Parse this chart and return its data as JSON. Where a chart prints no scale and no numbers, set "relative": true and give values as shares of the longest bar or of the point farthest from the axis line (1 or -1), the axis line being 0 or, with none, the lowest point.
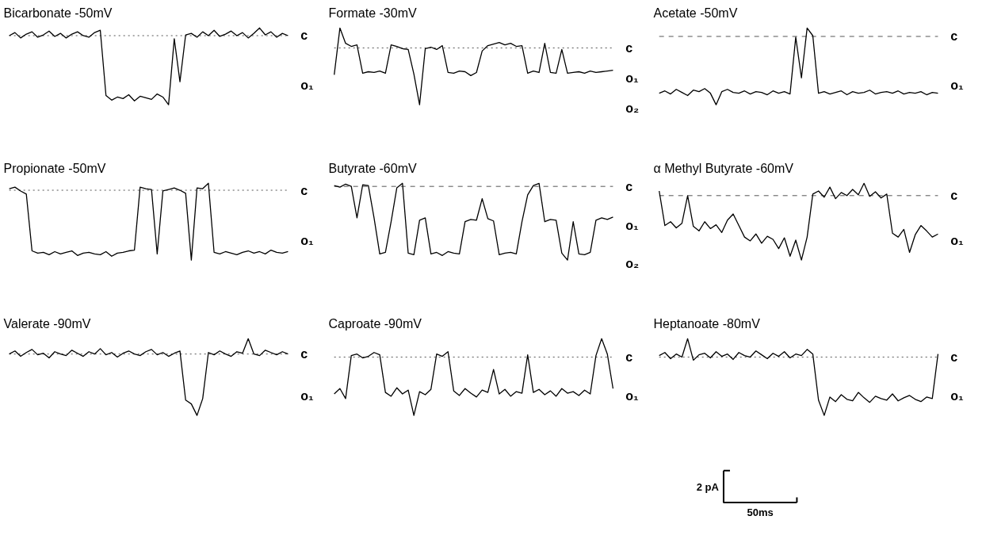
{
  "chart_data": [
    {
      "type": "line",
      "relative": true,
      "title": "Bicarbonate -50mV",
      "color": "#000000",
      "categories": [
        null,
        null,
        null,
        null,
        null,
        null,
        null,
        null,
        null,
        null,
        null,
        null,
        null,
        null,
        null,
        null,
        null,
        null,
        null,
        null,
        null,
        null,
        null,
        null,
        null,
        null,
        null,
        null,
        null,
        null,
        null,
        null,
        null,
        null,
        null,
        null,
        null,
        null,
        null,
        null,
        null,
        null,
        null,
        null,
        null,
        null,
        null,
        null,
        null,
        null
      ],
      "values": [
        0.9,
        0.94,
        0.87,
        0.92,
        0.95,
        0.88,
        0.91,
        0.96,
        0.89,
        0.93,
        0.87,
        0.92,
        0.95,
        0.9,
        0.88,
        0.94,
        0.97,
        0.12,
        0.06,
        0.1,
        0.08,
        0.13,
        0.05,
        0.11,
        0.09,
        0.07,
        0.14,
        0.1,
        0.0,
        0.86,
        0.3,
        0.91,
        0.93,
        0.88,
        0.95,
        0.9,
        0.97,
        0.89,
        0.92,
        0.96,
        0.9,
        0.94,
        0.87,
        0.93,
        1.0,
        0.91,
        0.95,
        0.88,
        0.93,
        0.9
      ],
      "ref_lines": [
        {
          "axis": "y",
          "value": 0.9,
          "label": "c",
          "line_style": "dotted",
          "color": "#555555"
        }
      ],
      "annotations": [
        "o₁"
      ]
    },
    {
      "type": "line",
      "relative": true,
      "title": "Formate -30mV",
      "color": "#000000",
      "categories": [
        null,
        null,
        null,
        null,
        null,
        null,
        null,
        null,
        null,
        null,
        null,
        null,
        null,
        null,
        null,
        null,
        null,
        null,
        null,
        null,
        null,
        null,
        null,
        null,
        null,
        null,
        null,
        null,
        null,
        null,
        null,
        null,
        null,
        null,
        null,
        null,
        null,
        null,
        null,
        null,
        null,
        null,
        null,
        null,
        null,
        null,
        null,
        null,
        null,
        null
      ],
      "values": [
        0.39,
        1.0,
        0.8,
        0.76,
        0.78,
        0.41,
        0.43,
        0.42,
        0.44,
        0.41,
        0.78,
        0.76,
        0.73,
        0.72,
        0.4,
        0.0,
        0.73,
        0.75,
        0.72,
        0.77,
        0.42,
        0.41,
        0.44,
        0.43,
        0.38,
        0.42,
        0.7,
        0.77,
        0.79,
        0.81,
        0.78,
        0.8,
        0.76,
        0.77,
        0.41,
        0.44,
        0.42,
        0.8,
        0.42,
        0.41,
        0.72,
        0.41,
        0.42,
        0.43,
        0.41,
        0.44,
        0.42,
        0.43,
        0.44,
        0.45
      ],
      "ref_lines": [
        {
          "axis": "y",
          "value": 0.74,
          "label": "c",
          "line_style": "dotted",
          "color": "#555555"
        }
      ],
      "annotations": [
        "o₁",
        "o₂"
      ]
    },
    {
      "type": "line",
      "relative": true,
      "title": "Acetate -50mV",
      "color": "#000000",
      "categories": [
        null,
        null,
        null,
        null,
        null,
        null,
        null,
        null,
        null,
        null,
        null,
        null,
        null,
        null,
        null,
        null,
        null,
        null,
        null,
        null,
        null,
        null,
        null,
        null,
        null,
        null,
        null,
        null,
        null,
        null,
        null,
        null,
        null,
        null,
        null,
        null,
        null,
        null,
        null,
        null,
        null,
        null,
        null,
        null,
        null,
        null,
        null,
        null,
        null,
        null
      ],
      "values": [
        0.15,
        0.18,
        0.14,
        0.2,
        0.16,
        0.12,
        0.19,
        0.17,
        0.21,
        0.15,
        0.0,
        0.17,
        0.2,
        0.16,
        0.15,
        0.18,
        0.14,
        0.17,
        0.16,
        0.13,
        0.18,
        0.15,
        0.17,
        0.14,
        0.88,
        0.35,
        1.0,
        0.9,
        0.15,
        0.17,
        0.14,
        0.16,
        0.18,
        0.13,
        0.17,
        0.15,
        0.16,
        0.19,
        0.14,
        0.16,
        0.17,
        0.15,
        0.18,
        0.14,
        0.16,
        0.15,
        0.17,
        0.13,
        0.16,
        0.15
      ],
      "ref_lines": [
        {
          "axis": "y",
          "value": 0.89,
          "label": "c",
          "line_style": "dashed",
          "color": "#555555"
        }
      ],
      "annotations": [
        "o₁"
      ]
    },
    {
      "type": "line",
      "relative": true,
      "title": "Propionate -50mV",
      "color": "#000000",
      "categories": [
        null,
        null,
        null,
        null,
        null,
        null,
        null,
        null,
        null,
        null,
        null,
        null,
        null,
        null,
        null,
        null,
        null,
        null,
        null,
        null,
        null,
        null,
        null,
        null,
        null,
        null,
        null,
        null,
        null,
        null,
        null,
        null,
        null,
        null,
        null,
        null,
        null,
        null,
        null,
        null,
        null,
        null,
        null,
        null,
        null,
        null,
        null,
        null,
        null,
        null
      ],
      "values": [
        0.93,
        0.95,
        0.9,
        0.86,
        0.12,
        0.09,
        0.1,
        0.07,
        0.11,
        0.08,
        0.1,
        0.12,
        0.06,
        0.09,
        0.1,
        0.08,
        0.07,
        0.11,
        0.05,
        0.09,
        0.1,
        0.12,
        0.13,
        0.95,
        0.93,
        0.92,
        0.08,
        0.9,
        0.92,
        0.94,
        0.91,
        0.87,
        0.0,
        0.94,
        0.93,
        1.0,
        0.1,
        0.08,
        0.11,
        0.09,
        0.07,
        0.1,
        0.12,
        0.09,
        0.11,
        0.08,
        0.13,
        0.1,
        0.09,
        0.11
      ],
      "ref_lines": [
        {
          "axis": "y",
          "value": 0.91,
          "label": "c",
          "line_style": "dotted",
          "color": "#555555"
        }
      ],
      "annotations": [
        "o₁"
      ]
    },
    {
      "type": "line",
      "relative": true,
      "title": "Butyrate -60mV",
      "color": "#000000",
      "categories": [
        null,
        null,
        null,
        null,
        null,
        null,
        null,
        null,
        null,
        null,
        null,
        null,
        null,
        null,
        null,
        null,
        null,
        null,
        null,
        null,
        null,
        null,
        null,
        null,
        null,
        null,
        null,
        null,
        null,
        null,
        null,
        null,
        null,
        null,
        null,
        null,
        null,
        null,
        null,
        null,
        null,
        null,
        null,
        null,
        null,
        null,
        null,
        null,
        null,
        null
      ],
      "values": [
        0.97,
        0.95,
        0.99,
        0.96,
        0.55,
        0.98,
        0.97,
        0.55,
        0.08,
        0.1,
        0.5,
        0.94,
        1.0,
        0.09,
        0.07,
        0.52,
        0.55,
        0.08,
        0.1,
        0.06,
        0.11,
        0.09,
        0.08,
        0.5,
        0.53,
        0.52,
        0.8,
        0.54,
        0.51,
        0.07,
        0.09,
        0.1,
        0.08,
        0.5,
        0.85,
        0.97,
        1.0,
        0.5,
        0.53,
        0.52,
        0.09,
        0.0,
        0.5,
        0.08,
        0.07,
        0.1,
        0.52,
        0.55,
        0.53,
        0.56
      ],
      "ref_lines": [
        {
          "axis": "y",
          "value": 0.96,
          "label": "c",
          "line_style": "dashed",
          "color": "#555555"
        }
      ],
      "annotations": [
        "o₁",
        "o₂"
      ]
    },
    {
      "type": "line",
      "relative": true,
      "title": "α Methyl Butyrate -60mV",
      "color": "#000000",
      "categories": [
        null,
        null,
        null,
        null,
        null,
        null,
        null,
        null,
        null,
        null,
        null,
        null,
        null,
        null,
        null,
        null,
        null,
        null,
        null,
        null,
        null,
        null,
        null,
        null,
        null,
        null,
        null,
        null,
        null,
        null,
        null,
        null,
        null,
        null,
        null,
        null,
        null,
        null,
        null,
        null,
        null,
        null,
        null,
        null,
        null,
        null,
        null,
        null,
        null,
        null
      ],
      "values": [
        0.9,
        0.45,
        0.5,
        0.42,
        0.48,
        0.84,
        0.44,
        0.38,
        0.5,
        0.41,
        0.46,
        0.36,
        0.52,
        0.6,
        0.45,
        0.3,
        0.25,
        0.34,
        0.22,
        0.31,
        0.27,
        0.15,
        0.29,
        0.05,
        0.26,
        0.0,
        0.3,
        0.86,
        0.9,
        0.82,
        0.95,
        0.8,
        0.88,
        0.84,
        0.92,
        0.85,
        1.0,
        0.83,
        0.89,
        0.81,
        0.86,
        0.35,
        0.3,
        0.4,
        0.1,
        0.33,
        0.45,
        0.38,
        0.3,
        0.34
      ],
      "ref_lines": [
        {
          "axis": "y",
          "value": 0.84,
          "label": "c",
          "line_style": "dashed",
          "color": "#555555"
        }
      ],
      "annotations": [
        "o₁"
      ]
    },
    {
      "type": "line",
      "relative": true,
      "title": "Valerate -90mV",
      "color": "#000000",
      "categories": [
        null,
        null,
        null,
        null,
        null,
        null,
        null,
        null,
        null,
        null,
        null,
        null,
        null,
        null,
        null,
        null,
        null,
        null,
        null,
        null,
        null,
        null,
        null,
        null,
        null,
        null,
        null,
        null,
        null,
        null,
        null,
        null,
        null,
        null,
        null,
        null,
        null,
        null,
        null,
        null,
        null,
        null,
        null,
        null,
        null,
        null,
        null,
        null,
        null,
        null
      ],
      "values": [
        0.8,
        0.84,
        0.77,
        0.82,
        0.86,
        0.79,
        0.81,
        0.75,
        0.83,
        0.8,
        0.78,
        0.85,
        0.81,
        0.77,
        0.83,
        0.8,
        0.87,
        0.79,
        0.82,
        0.76,
        0.81,
        0.84,
        0.8,
        0.78,
        0.83,
        0.86,
        0.79,
        0.82,
        0.77,
        0.81,
        0.84,
        0.2,
        0.15,
        0.0,
        0.22,
        0.82,
        0.79,
        0.84,
        0.8,
        0.77,
        0.83,
        0.81,
        1.0,
        0.8,
        0.78,
        0.85,
        0.82,
        0.79,
        0.83,
        0.8
      ],
      "ref_lines": [
        {
          "axis": "y",
          "value": 0.8,
          "label": "c",
          "line_style": "dotted",
          "color": "#555555"
        }
      ],
      "annotations": [
        "o₁"
      ]
    },
    {
      "type": "line",
      "relative": true,
      "title": "Caproate -90mV",
      "color": "#000000",
      "categories": [
        null,
        null,
        null,
        null,
        null,
        null,
        null,
        null,
        null,
        null,
        null,
        null,
        null,
        null,
        null,
        null,
        null,
        null,
        null,
        null,
        null,
        null,
        null,
        null,
        null,
        null,
        null,
        null,
        null,
        null,
        null,
        null,
        null,
        null,
        null,
        null,
        null,
        null,
        null,
        null,
        null,
        null,
        null,
        null,
        null,
        null,
        null,
        null,
        null,
        null
      ],
      "values": [
        0.28,
        0.35,
        0.22,
        0.78,
        0.8,
        0.75,
        0.77,
        0.82,
        0.79,
        0.3,
        0.25,
        0.36,
        0.28,
        0.33,
        0.0,
        0.31,
        0.27,
        0.34,
        0.8,
        0.77,
        0.83,
        0.32,
        0.26,
        0.35,
        0.29,
        0.24,
        0.33,
        0.3,
        0.6,
        0.28,
        0.34,
        0.25,
        0.31,
        0.29,
        0.79,
        0.3,
        0.34,
        0.27,
        0.32,
        0.25,
        0.35,
        0.29,
        0.31,
        0.26,
        0.33,
        0.28,
        0.78,
        1.0,
        0.8,
        0.35
      ],
      "ref_lines": [
        {
          "axis": "y",
          "value": 0.76,
          "label": "c",
          "line_style": "dotted",
          "color": "#555555"
        }
      ],
      "annotations": [
        "o₁"
      ]
    },
    {
      "type": "line",
      "relative": true,
      "title": "Heptanoate -80mV",
      "color": "#000000",
      "categories": [
        null,
        null,
        null,
        null,
        null,
        null,
        null,
        null,
        null,
        null,
        null,
        null,
        null,
        null,
        null,
        null,
        null,
        null,
        null,
        null,
        null,
        null,
        null,
        null,
        null,
        null,
        null,
        null,
        null,
        null,
        null,
        null,
        null,
        null,
        null,
        null,
        null,
        null,
        null,
        null,
        null,
        null,
        null,
        null,
        null,
        null,
        null,
        null,
        null,
        null
      ],
      "values": [
        0.78,
        0.82,
        0.74,
        0.8,
        0.76,
        1.0,
        0.72,
        0.79,
        0.81,
        0.75,
        0.83,
        0.77,
        0.8,
        0.73,
        0.82,
        0.78,
        0.76,
        0.84,
        0.79,
        0.74,
        0.81,
        0.77,
        0.83,
        0.75,
        0.8,
        0.78,
        0.86,
        0.8,
        0.2,
        0.0,
        0.24,
        0.18,
        0.27,
        0.21,
        0.19,
        0.3,
        0.23,
        0.17,
        0.25,
        0.22,
        0.2,
        0.28,
        0.19,
        0.23,
        0.26,
        0.21,
        0.18,
        0.24,
        0.22,
        0.8
      ],
      "ref_lines": [
        {
          "axis": "y",
          "value": 0.76,
          "label": "c",
          "line_style": "dotted",
          "color": "#555555"
        }
      ],
      "annotations": [
        "o₁"
      ]
    },
    {
      "type": "other",
      "annotations": [
        "2 pA",
        "50ms"
      ]
    }
  ]
}
